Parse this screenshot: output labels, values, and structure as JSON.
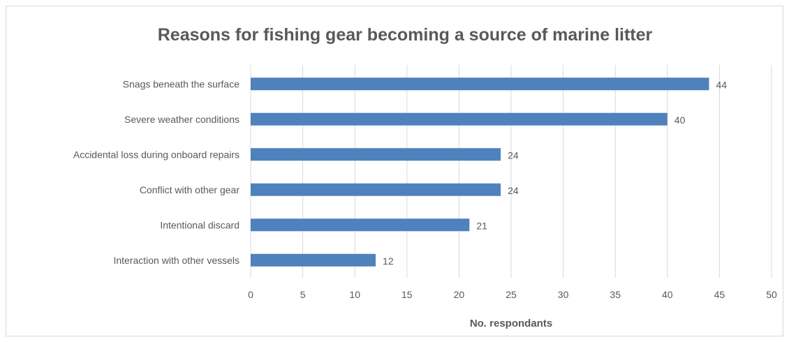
{
  "chart_data": {
    "type": "bar",
    "orientation": "horizontal",
    "title": "Reasons for fishing gear becoming a source of marine litter",
    "xlabel": "No. respondants",
    "ylabel": "",
    "categories": [
      "Snags beneath the surface",
      "Severe weather conditions",
      "Accidental loss during onboard repairs",
      "Conflict with other gear",
      "Intentional discard",
      "Interaction with other vessels"
    ],
    "values": [
      44,
      40,
      24,
      24,
      21,
      12
    ],
    "data_labels": [
      "44",
      "40",
      "24",
      "24",
      "21",
      "12"
    ],
    "xlim": [
      0,
      50
    ],
    "x_ticks": [
      "0",
      "5",
      "10",
      "15",
      "20",
      "25",
      "30",
      "35",
      "40",
      "45",
      "50"
    ],
    "bar_color": "#4f81bd",
    "grid": true,
    "grid_color": "#d9d9d9",
    "legend": "none"
  }
}
